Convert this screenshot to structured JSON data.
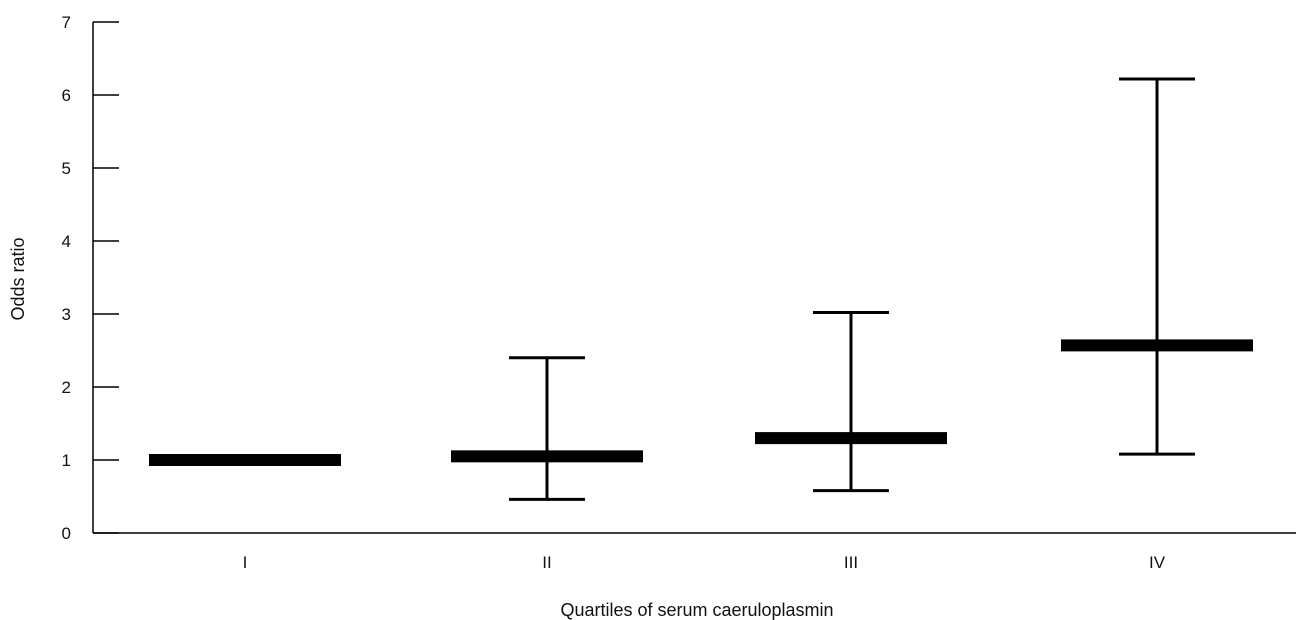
{
  "chart_data": {
    "type": "bar",
    "style": "point estimates with error bars",
    "xlabel": "Quartiles of serum caeruloplasmin",
    "ylabel": "Odds ratio",
    "categories": [
      "I",
      "II",
      "III",
      "IV"
    ],
    "series": [
      {
        "values": [
          1.0,
          1.05,
          1.3,
          2.57
        ],
        "ci_lower": [
          null,
          0.46,
          0.58,
          1.08
        ],
        "ci_upper": [
          null,
          2.4,
          3.02,
          6.22
        ]
      }
    ],
    "ylim": [
      0,
      7
    ],
    "yticks": [
      0,
      1,
      2,
      3,
      4,
      5,
      6,
      7
    ],
    "grid": false,
    "legend": "none",
    "colors": {
      "marks": "#000000",
      "axis": "#000000"
    }
  }
}
